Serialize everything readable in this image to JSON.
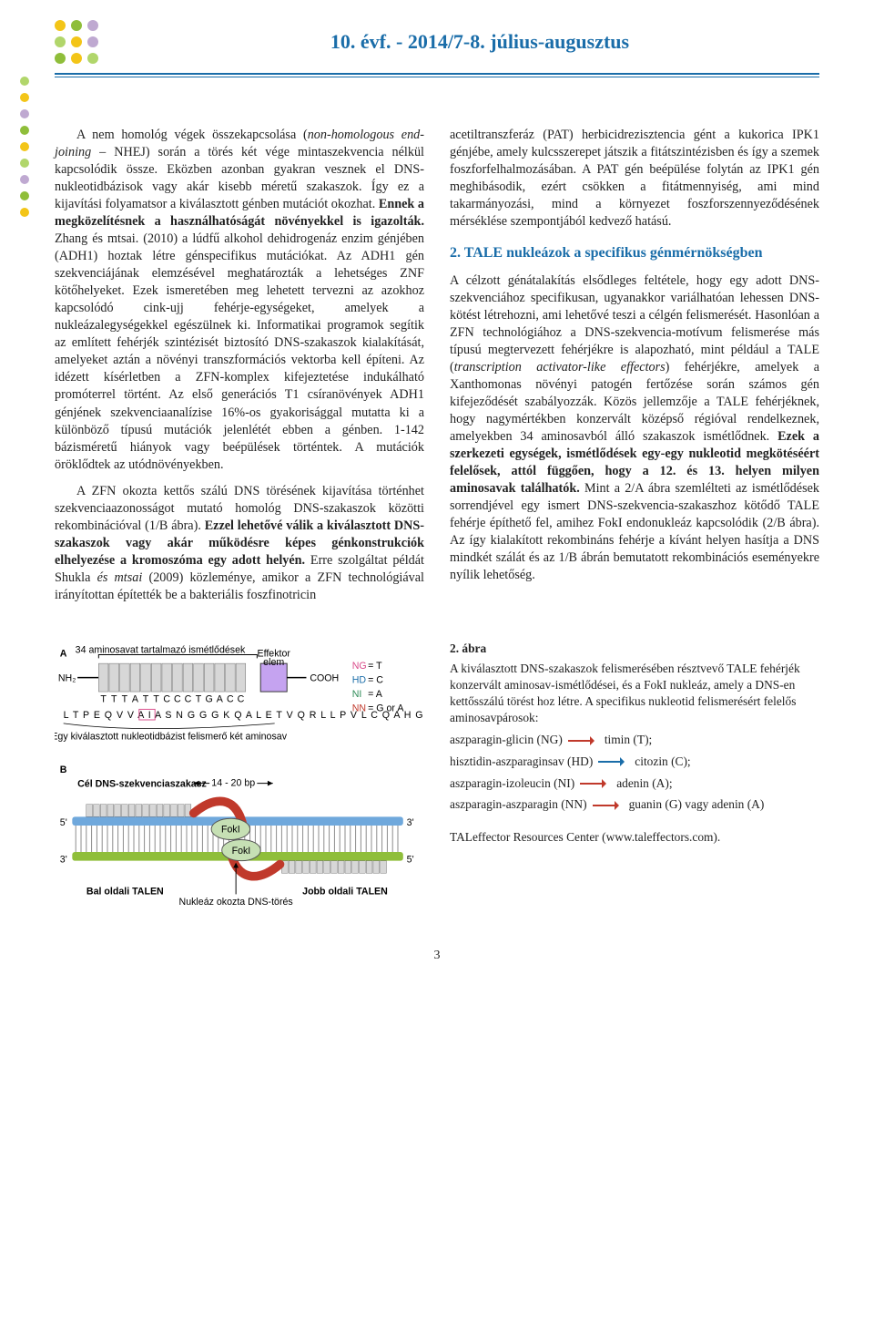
{
  "header": {
    "title": "10. évf. - 2014/7-8. július-augusztus",
    "title_color": "#1a6da9",
    "dot_colors": [
      "#f3c518",
      "#8fbe3a",
      "#bfa9d1",
      "#b1d66b",
      "#f3c518",
      "#bfa9d1",
      "#8fbe3a",
      "#f3c518",
      "#b1d66b"
    ],
    "side_dot_colors": [
      "#b1d66b",
      "#f3c518",
      "#bfa9d1",
      "#8fbe3a",
      "#f3c518",
      "#b1d66b",
      "#bfa9d1",
      "#8fbe3a",
      "#f3c518"
    ]
  },
  "left_col": {
    "p1_a": "A nem homológ végek összekapcsolása (",
    "p1_i1": "non-homologous end-joining",
    "p1_b": " – NHEJ) során a törés két vége mintaszekvencia nélkül kapcsolódik össze. Eközben azonban gyakran vesznek el DNS-nukleotidbázisok vagy akár kisebb méretű szakaszok. Így ez a kijavítási folyamatsor a kiválasztott génben mutációt okozhat. ",
    "p1_bold1": "Ennek a megközelítésnek a használhatóságát növényekkel is igazolták.",
    "p1_c": " Zhang és mtsai. (2010) a lúdfű alkohol dehidrogenáz enzim génjében (ADH1) hoztak létre génspecifikus mutációkat. Az ADH1 gén szekvenciájának elemzésével meghatározták a lehetséges ZNF kötőhelyeket. Ezek ismeretében meg lehetett tervezni az azokhoz kapcsolódó cink-ujj fehérje-egységeket, amelyek a nukleázalegységekkel egészülnek ki. Informatikai programok segítik az említett fehérjék szintézisét biztosító DNS-szakaszok kialakítását, amelyeket aztán a növényi transzformációs vektorba kell építeni. Az idézett kísérletben a ZFN-komplex kifejeztetése indukálható promóterrel történt. Az első generációs T1 csíranövények ADH1 génjének szekvenciaanalízise 16%-os gyakorisággal mutatta ki a különböző típusú mutációk jelenlétét ebben a génben. 1-142 bázisméretű hiányok vagy beépülések történtek. A mutációk öröklődtek az utódnövényekben.",
    "p2_a": "A ZFN okozta kettős szálú DNS törésének kijavítása történhet szekvenciaazonosságot mutató homológ DNS-szakaszok közötti rekombinációval (1/B ábra). ",
    "p2_bold1": "Ezzel lehetővé válik a kiválasztott DNS-szakaszok vagy akár működésre képes génkonstrukciók elhelyezése a kromoszóma egy adott helyén.",
    "p2_b": " Erre szolgáltat példát Shukla ",
    "p2_i1": "és mtsai",
    "p2_c": " (2009) közleménye, amikor a ZFN technológiával irányítottan építették be a bakteriális foszfinotricin"
  },
  "right_col": {
    "p1": "acetiltranszferáz (PAT) herbicidrezisztencia gént a kukorica IPK1 génjébe, amely kulcsszerepet játszik a fitátszintézisben és így a szemek foszforfelhalmozásában. A PAT gén beépülése folytán az IPK1 gén meghibásodik, ezért csökken a fitátmennyiség, ami mind takarmányozási, mind a környezet foszforszennyeződésének mérséklése szempontjából kedvező hatású.",
    "section_heading": "2. TALE nukleázok a specifikus génmérnökségben",
    "p2_a": "A célzott génátalakítás elsődleges feltétele, hogy egy adott DNS-szekvenciához specifikusan, ugyanakkor variálhatóan lehessen DNS-kötést létrehozni, ami lehetővé teszi a célgén felismerését. Hasonlóan a ZFN technológiához a DNS-szekvencia-motívum felismerése más típusú megtervezett fehérjékre is alapozható, mint például a TALE (",
    "p2_i1": "transcription activator-like effectors",
    "p2_b": ") fehérjékre, amelyek a Xanthomonas növényi patogén fertőzése során számos gén kifejeződését szabályozzák. Közös jellemzője a TALE fehérjéknek, hogy nagymértékben konzervált középső régióval rendelkeznek, amelyekben 34 aminosavból álló szakaszok ismétlődnek. ",
    "p2_bold1": "Ezek a szerkezeti egységek, ismétlődések egy-egy nukleotid megkötéséért felelősek, attól függően, hogy a 12. és 13. helyen milyen aminosavak találhatók.",
    "p2_c": " Mint a 2/A ábra szemlélteti az ismétlődések sorrendjével egy ismert DNS-szekvencia-szakaszhoz kötődő TALE fehérje építhető fel, amihez FokI endonukleáz kapcsolódik (2/B ábra). Az így kialakított rekombináns fehérje a kívánt helyen hasítja a DNS mindkét szálát és az 1/B ábrán bemutatott rekombinációs eseményekre nyílik lehetőség."
  },
  "figure": {
    "panelA_label": "A",
    "panelB_label": "B",
    "repeat_label": "34 aminosavat tartalmazó ismétlődések",
    "repeat_seq": "T T T A T T C C C T G A C C",
    "effector_label": "Effektor\nelem",
    "nh2": "NH₂",
    "cooh": "COOH",
    "seq_line": "L T P E Q V V A I A S N G G G K Q A L E T V Q R L L P V L C Q A H G",
    "seq_caption": "Egy kiválasztott nukleotidbázist felismerő két aminosav",
    "code_NG": "NG",
    "code_HD": "HD",
    "code_NI": "NI",
    "code_NN": "NN",
    "eq_T": " = T",
    "eq_C": " = C",
    "eq_A": " = A",
    "eq_GA": " = G or A",
    "target_label": "Cél DNS-szekvenciaszakasz",
    "span_label": "14 - 20 bp",
    "foki": "FokI",
    "left_talen": "Bal oldali TALEN",
    "right_talen": "Jobb oldali TALEN",
    "break_label": "Nukleáz okozta DNS-törés",
    "five_prime": "5'",
    "three_prime": "3'",
    "colors": {
      "repeat_box": "#d7d7d7",
      "effector_box": "#c5a3f0",
      "code_ng": "#d94b8a",
      "code_hd": "#1a6da9",
      "code_ni": "#2e8b57",
      "code_nn": "#c0392b",
      "dna_top": "#6fa8dc",
      "dna_bot": "#8fbe3a",
      "foki_fill": "#c6e0b4",
      "talen_red": "#c0392b"
    }
  },
  "caption": {
    "head": "2. ábra",
    "body": "A kiválasztott DNS-szakaszok felismerésében résztvevő TALE fehérjék konzervált aminosav-ismétlődései, és a FokI nukleáz, amely a DNS-en kettősszálú törést hoz létre. A specifikus nukleotid felismerésért felelős aminosavpárosok:",
    "pairs": [
      {
        "left": "aszparagin-glicin (NG)",
        "right": "timin (T);",
        "color": "red"
      },
      {
        "left": "hisztidin-aszparaginsav (HD)",
        "right": "citozin (C);",
        "color": "blue"
      },
      {
        "left": "aszparagin-izoleucin (NI)",
        "right": "adenin (A);",
        "color": "red"
      },
      {
        "left": "aszparagin-aszparagin (NN)",
        "right": "guanin (G) vagy adenin (A)",
        "color": "red"
      }
    ],
    "source": "TALeffector Resources Center (www.taleffectors.com)."
  },
  "page_number": "3"
}
